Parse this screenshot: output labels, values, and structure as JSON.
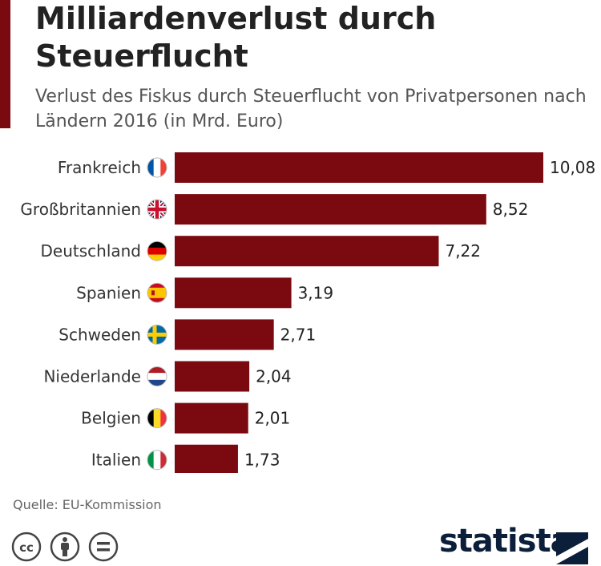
{
  "header": {
    "title": "Milliardenverlust durch Steuerflucht",
    "subtitle": "Verlust des Fiskus durch Steuerflucht von Privatpersonen nach Ländern 2016 (in Mrd. Euro)"
  },
  "colors": {
    "accent": "#7a0a10",
    "bar": "#7a0a10",
    "text": "#333333",
    "logo": "#0b1e3a"
  },
  "chart_data": {
    "type": "bar",
    "orientation": "horizontal",
    "title": "Milliardenverlust durch Steuerflucht",
    "subtitle": "Verlust des Fiskus durch Steuerflucht von Privatpersonen nach Ländern 2016 (in Mrd. Euro)",
    "categories": [
      "Frankreich",
      "Großbritannien",
      "Deutschland",
      "Spanien",
      "Schweden",
      "Niederlande",
      "Belgien",
      "Italien"
    ],
    "values": [
      10.08,
      8.52,
      7.22,
      3.19,
      2.71,
      2.04,
      2.01,
      1.73
    ],
    "value_labels": [
      "10,08",
      "8,52",
      "7,22",
      "3,19",
      "2,71",
      "2,04",
      "2,01",
      "1,73"
    ],
    "flags": [
      "flag-france-icon",
      "flag-uk-icon",
      "flag-germany-icon",
      "flag-spain-icon",
      "flag-sweden-icon",
      "flag-netherlands-icon",
      "flag-belgium-icon",
      "flag-italy-icon"
    ],
    "xlabel": "",
    "ylabel": "",
    "xlim": [
      0,
      10.08
    ],
    "grid": false,
    "legend": "none"
  },
  "footer": {
    "source": "Quelle: EU-Kommission",
    "logo_text": "statista",
    "license_icons": [
      "cc-icon",
      "by-icon",
      "nd-icon"
    ]
  }
}
